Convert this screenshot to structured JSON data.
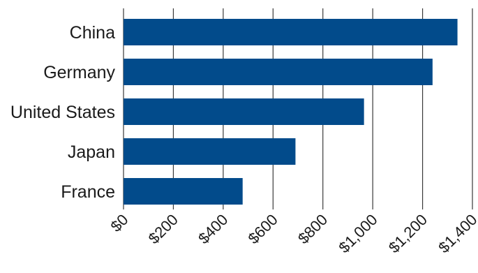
{
  "chart_data": {
    "type": "bar",
    "orientation": "horizontal",
    "categories": [
      "China",
      "Germany",
      "United States",
      "Japan",
      "France"
    ],
    "values": [
      1340,
      1240,
      965,
      690,
      478
    ],
    "xlim": [
      0,
      1400
    ],
    "xticks": [
      0,
      200,
      400,
      600,
      800,
      1000,
      1200,
      1400
    ],
    "xtick_labels": [
      "$0",
      "$200",
      "$400",
      "$600",
      "$800",
      "$1,000",
      "$1,200",
      "$1,400"
    ],
    "grid": "vertical",
    "bar_color": "#024b8b",
    "title": "",
    "xlabel": "",
    "ylabel": ""
  }
}
